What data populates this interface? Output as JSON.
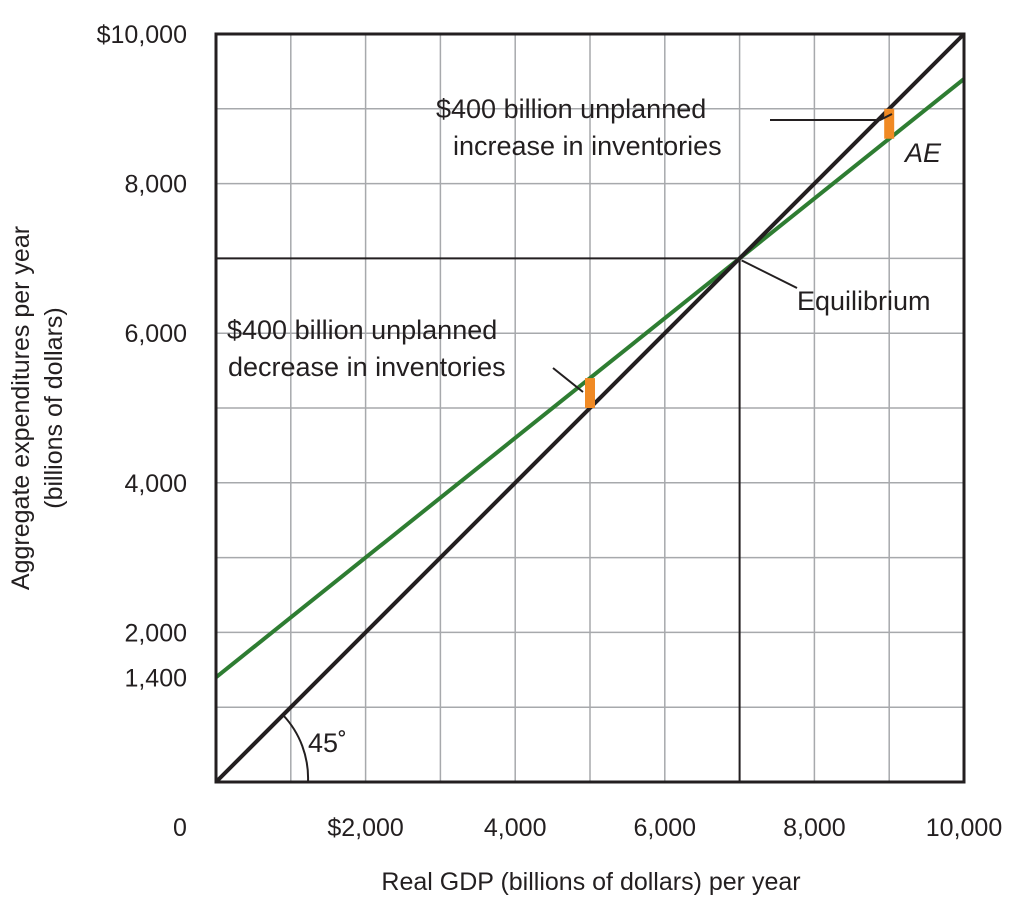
{
  "chart_data": {
    "type": "line",
    "title": "",
    "xlabel": "Real GDP (billions of dollars) per year",
    "ylabel": "Aggregate expenditures per year",
    "ylabel_line2": "(billions of dollars)",
    "xlim": [
      0,
      10000
    ],
    "ylim": [
      0,
      10000
    ],
    "grid": true,
    "x_ticks": [
      {
        "value": 0,
        "label": "0"
      },
      {
        "value": 2000,
        "label": "$2,000"
      },
      {
        "value": 4000,
        "label": "4,000"
      },
      {
        "value": 6000,
        "label": "6,000"
      },
      {
        "value": 8000,
        "label": "8,000"
      },
      {
        "value": 10000,
        "label": "10,000"
      }
    ],
    "y_ticks": [
      {
        "value": 1400,
        "label": "1,400"
      },
      {
        "value": 2000,
        "label": "2,000"
      },
      {
        "value": 4000,
        "label": "4,000"
      },
      {
        "value": 6000,
        "label": "6,000"
      },
      {
        "value": 8000,
        "label": "8,000"
      },
      {
        "value": 10000,
        "label": "$10,000"
      }
    ],
    "series": [
      {
        "name": "AE",
        "color": "#2e7d32",
        "x": [
          0,
          10000
        ],
        "y": [
          1400,
          9400
        ]
      },
      {
        "name": "",
        "color": "#231f20",
        "x": [
          0,
          10000
        ],
        "y": [
          0,
          10000
        ]
      }
    ],
    "equilibrium": {
      "x": 7000,
      "y": 7000,
      "label": "Equilibrium"
    },
    "inventory_gaps": [
      {
        "x": 5000,
        "y_low": 5000,
        "y_high": 5400,
        "color": "#f08a24"
      },
      {
        "x": 9000,
        "y_low": 8600,
        "y_high": 9000,
        "color": "#f08a24"
      }
    ],
    "annotations": {
      "increase_line1": "$400 billion unplanned",
      "increase_line2": "increase in inventories",
      "decrease_line1": "$400 billion unplanned",
      "decrease_line2": "decrease in inventories",
      "equilibrium": "Equilibrium",
      "ae_label": "AE",
      "angle_label": "45˚"
    }
  }
}
